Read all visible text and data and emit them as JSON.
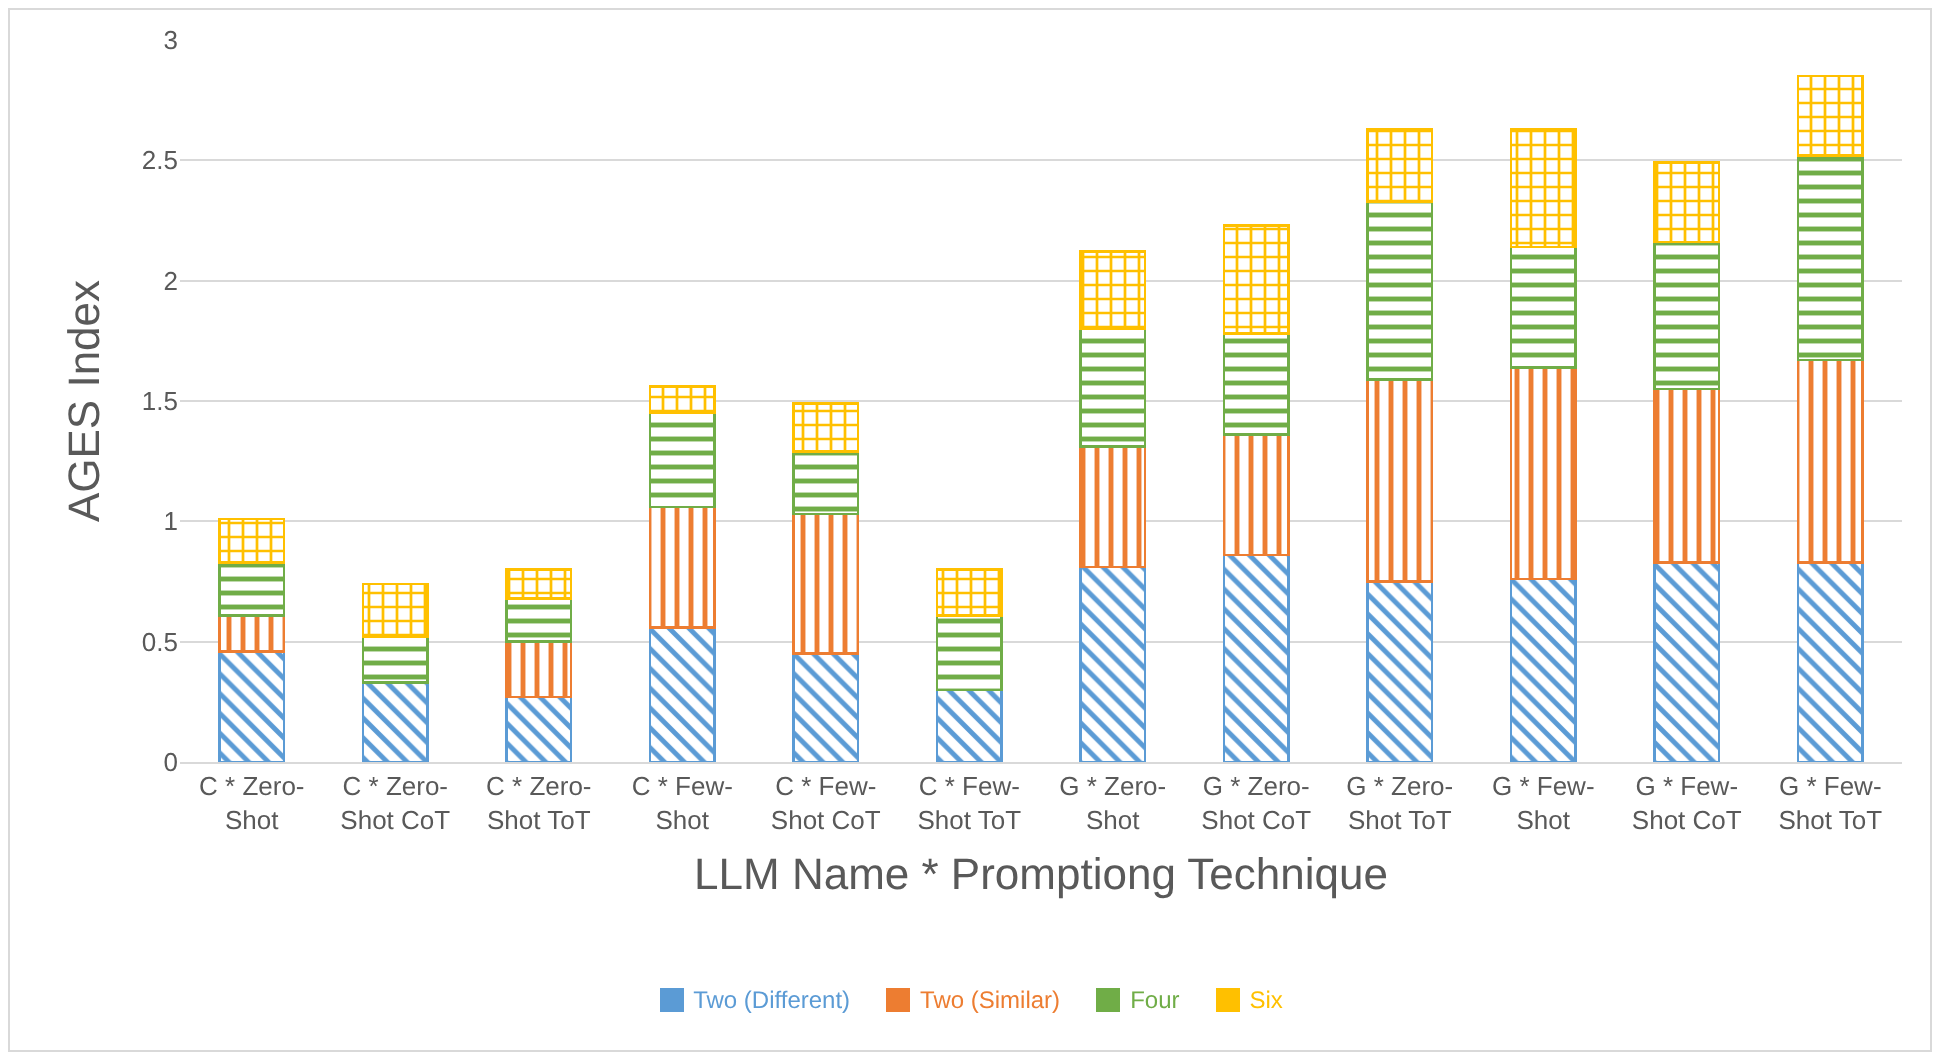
{
  "chart_data": {
    "type": "bar",
    "stacked": true,
    "xlabel": "LLM Name * Promptiong Technique",
    "ylabel": "AGES Index",
    "categories": [
      "C * Zero-Shot",
      "C * Zero-Shot CoT",
      "C * Zero-Shot ToT",
      "C * Few-Shot",
      "C * Few-Shot CoT",
      "C * Few-Shot ToT",
      "G * Zero-Shot",
      "G * Zero-Shot CoT",
      "G * Zero-Shot ToT",
      "G * Few-Shot",
      "G * Few-Shot CoT",
      "G * Few-Shot ToT"
    ],
    "series": [
      {
        "name": "Two (Different)",
        "color": "#5b9bd5",
        "values": [
          0.46,
          0.33,
          0.27,
          0.56,
          0.45,
          0.3,
          0.81,
          0.86,
          0.75,
          0.76,
          0.83,
          0.83
        ]
      },
      {
        "name": "Two (Similar)",
        "color": "#ed7d31",
        "values": [
          0.15,
          0,
          0.23,
          0.5,
          0.58,
          0,
          0.5,
          0.5,
          0.84,
          0.88,
          0.72,
          0.84
        ]
      },
      {
        "name": "Four",
        "color": "#70ad47",
        "values": [
          0.22,
          0.19,
          0.18,
          0.39,
          0.26,
          0.31,
          0.49,
          0.42,
          0.74,
          0.5,
          0.61,
          0.85
        ]
      },
      {
        "name": "Six",
        "color": "#ffc000",
        "values": [
          0.18,
          0.22,
          0.12,
          0.11,
          0.2,
          0.19,
          0.32,
          0.45,
          0.3,
          0.49,
          0.33,
          0.33
        ]
      }
    ],
    "ylim": [
      0,
      3
    ],
    "yticks": [
      0,
      0.5,
      1,
      1.5,
      2,
      2.5,
      3
    ],
    "grid": "y",
    "legend": "bottom"
  }
}
